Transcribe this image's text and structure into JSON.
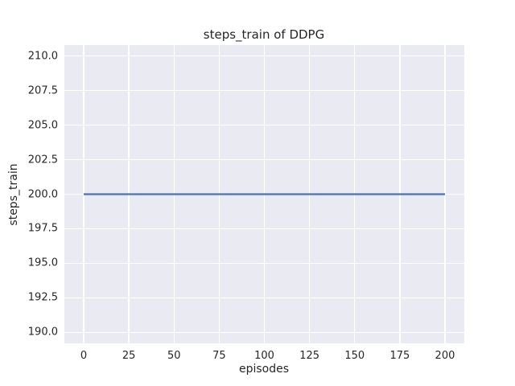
{
  "chart_data": {
    "type": "line",
    "title": "steps_train of DDPG",
    "xlabel": "episodes",
    "ylabel": "steps_train",
    "x_ticks": [
      0,
      25,
      50,
      75,
      100,
      125,
      150,
      175,
      200
    ],
    "x_tick_labels": [
      "0",
      "25",
      "50",
      "75",
      "100",
      "125",
      "150",
      "175",
      "200"
    ],
    "y_ticks": [
      190.0,
      192.5,
      195.0,
      197.5,
      200.0,
      202.5,
      205.0,
      207.5,
      210.0
    ],
    "y_tick_labels": [
      "190.0",
      "192.5",
      "195.0",
      "197.5",
      "200.0",
      "202.5",
      "205.0",
      "207.5",
      "210.0"
    ],
    "xlim": [
      -10.7,
      210.7
    ],
    "ylim": [
      189.2,
      210.8
    ],
    "grid": true,
    "legend": null,
    "series": [
      {
        "name": "steps_train",
        "color": "#4C72B0",
        "x": [
          0,
          200
        ],
        "y": [
          200,
          200
        ],
        "description": "constant value 200 across all episodes"
      }
    ],
    "style": {
      "axes_background": "#eaeaf2",
      "grid_color": "#ffffff",
      "text_color": "#262626",
      "figure_background": "#ffffff"
    }
  }
}
